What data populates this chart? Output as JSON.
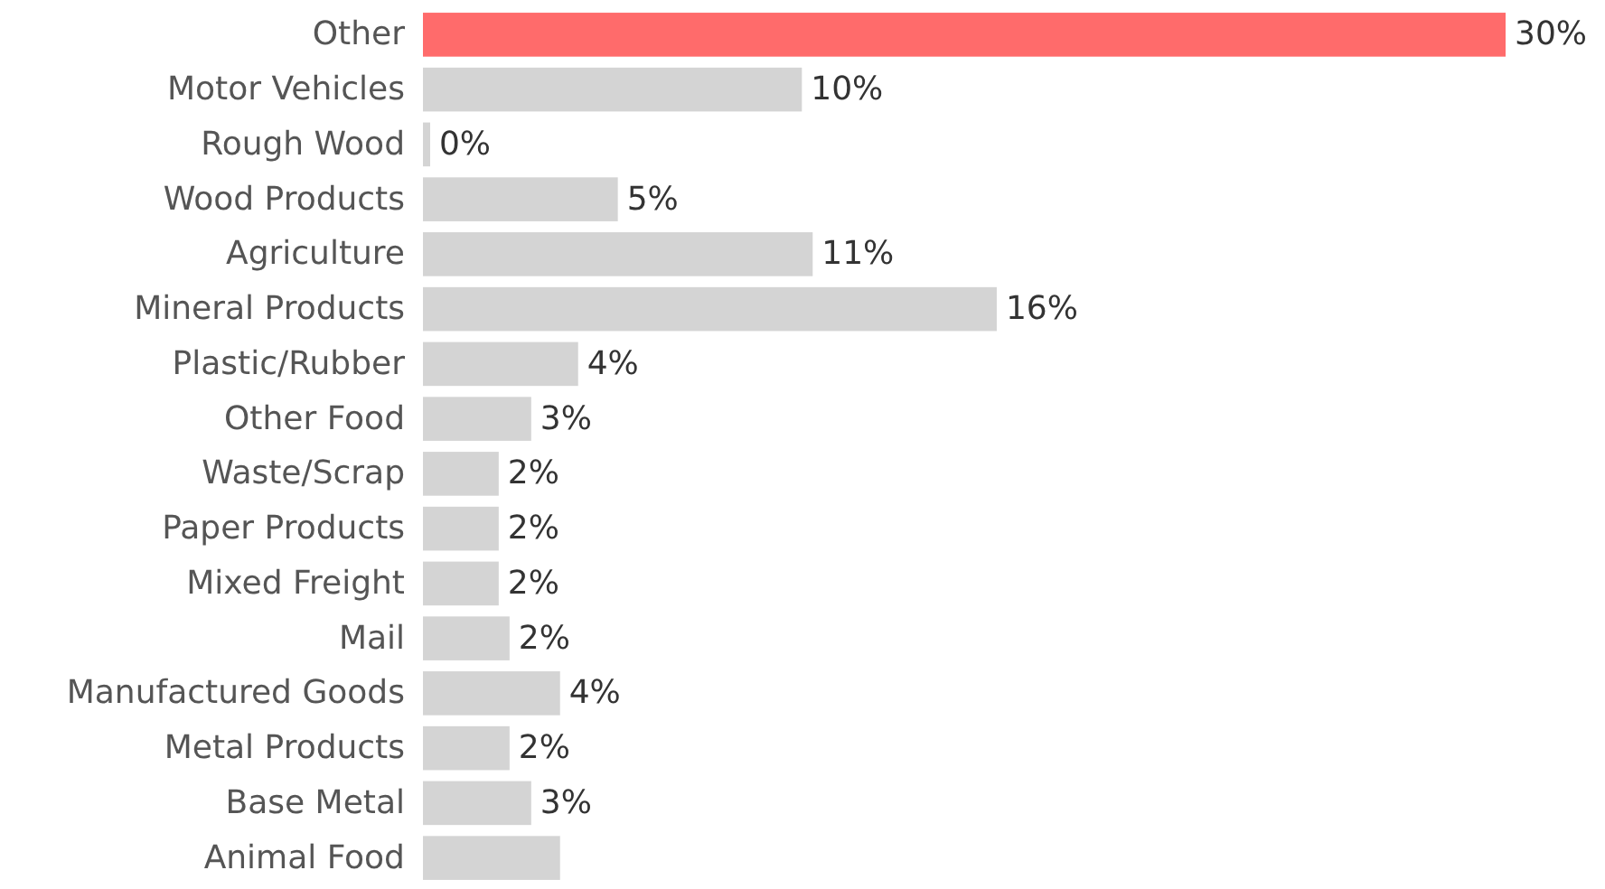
{
  "chart_data": {
    "type": "bar",
    "orientation": "horizontal",
    "categories": [
      "Other",
      "Motor Vehicles",
      "Rough Wood",
      "Wood Products",
      "Agriculture",
      "Mineral Products",
      "Plastic/Rubber",
      "Other Food",
      "Waste/Scrap",
      "Paper Products",
      "Mixed Freight",
      "Mail",
      "Manufactured Goods",
      "Metal Products",
      "Base Metal",
      "Animal Food"
    ],
    "values": [
      30,
      10.5,
      0.2,
      5.4,
      10.8,
      15.9,
      4.3,
      3.0,
      2.1,
      2.1,
      2.1,
      2.4,
      3.8,
      2.4,
      3.0,
      3.8
    ],
    "colors": [
      "#ff6b6b",
      "#d4d4d4",
      "#d4d4d4",
      "#d4d4d4",
      "#d4d4d4",
      "#d4d4d4",
      "#d4d4d4",
      "#d4d4d4",
      "#d4d4d4",
      "#d4d4d4",
      "#d4d4d4",
      "#d4d4d4",
      "#d4d4d4",
      "#d4d4d4",
      "#d4d4d4",
      "#d4d4d4"
    ],
    "value_labels": [
      "30%",
      "10%",
      "0%",
      "5%",
      "11%",
      "16%",
      "4%",
      "3%",
      "2%",
      "2%",
      "2%",
      "2%",
      "4%",
      "2%",
      "3%",
      null
    ]
  }
}
